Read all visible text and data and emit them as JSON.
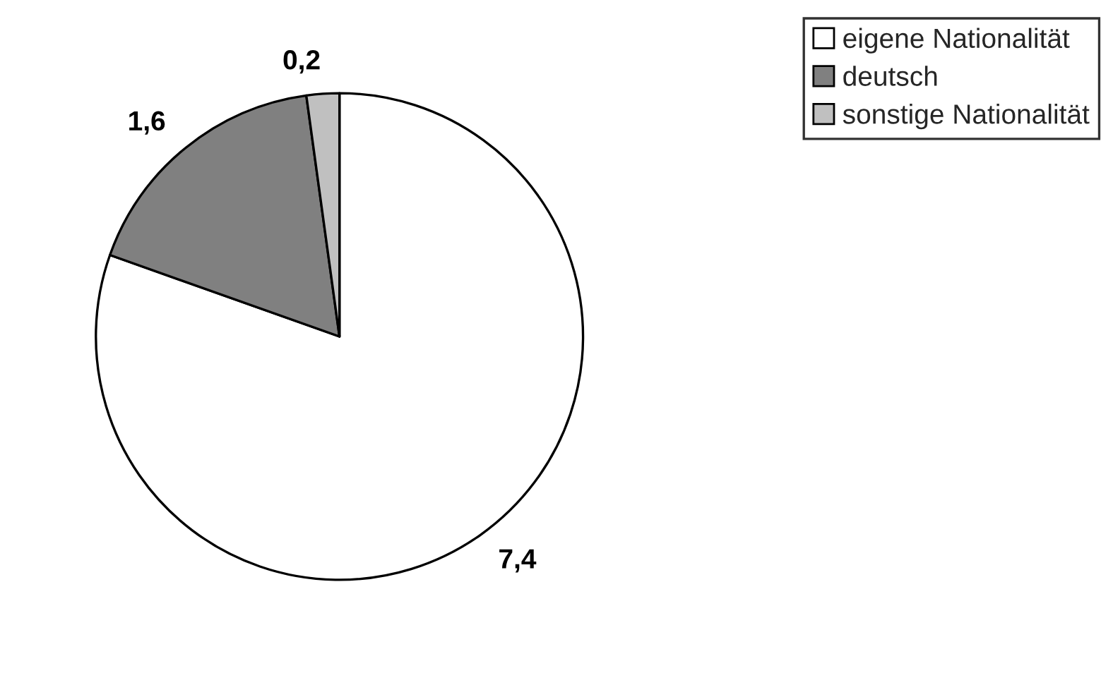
{
  "chart_data": {
    "type": "pie",
    "categories": [
      "eigene Nationalität",
      "deutsch",
      "sonstige Nationalität"
    ],
    "values": [
      7.4,
      1.6,
      0.2
    ],
    "colors": [
      "#ffffff",
      "#808080",
      "#c0c0c0"
    ],
    "value_labels": [
      "7,4",
      "1,6",
      "0,2"
    ],
    "legend": "top right"
  }
}
